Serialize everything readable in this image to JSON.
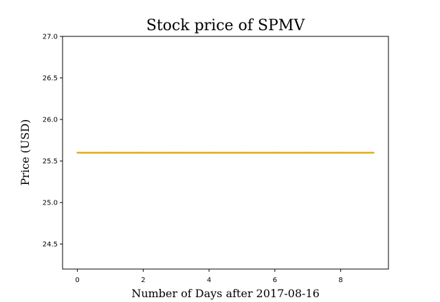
{
  "chart_data": {
    "type": "line",
    "title": "Stock price of SPMV",
    "xlabel": "Number of Days after 2017-08-16",
    "ylabel": "Price (USD)",
    "xlim": [
      -0.45,
      9.45
    ],
    "ylim": [
      24.2,
      27.0
    ],
    "xticks": [
      0,
      2,
      4,
      6,
      8
    ],
    "xtick_labels": [
      "0",
      "2",
      "4",
      "6",
      "8"
    ],
    "yticks": [
      24.5,
      25.0,
      25.5,
      26.0,
      26.5,
      27.0
    ],
    "ytick_labels": [
      "24.5",
      "25.0",
      "25.5",
      "26.0",
      "26.5",
      "27.0"
    ],
    "grid": false,
    "series": [
      {
        "color": "#e6a817",
        "x": [
          0,
          1,
          2,
          3,
          4,
          5,
          6,
          7,
          8,
          9
        ],
        "y": [
          25.6,
          25.6,
          25.6,
          25.6,
          25.6,
          25.6,
          25.6,
          25.6,
          25.6,
          25.6
        ]
      }
    ]
  }
}
